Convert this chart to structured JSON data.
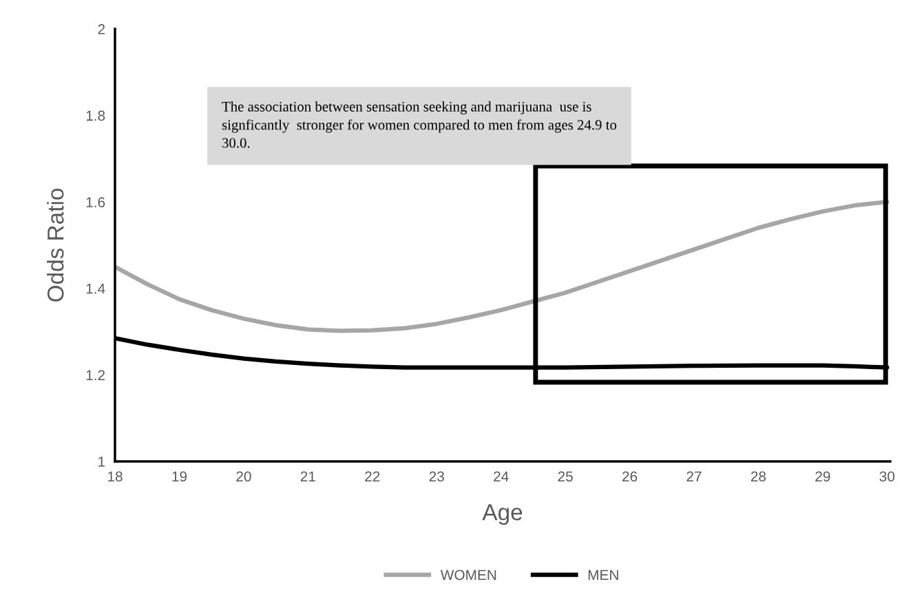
{
  "chart_data": {
    "type": "line",
    "xlabel": "Age",
    "ylabel": "Odds Ratio",
    "annotations": [
      "The association between sensation seeking and marijuana  use is signficantly  stronger for women compared to men from ages 24.9 to 30.0."
    ],
    "xlim": [
      18,
      30.05
    ],
    "xticks": [
      18,
      19,
      20,
      21,
      22,
      23,
      24,
      25,
      26,
      27,
      28,
      29,
      30
    ],
    "ylim": [
      1,
      2
    ],
    "yticks": [
      1,
      1.2,
      1.4,
      1.6,
      1.8,
      2
    ],
    "grid": false,
    "legend": "bottom",
    "marker": "none",
    "line_style": "solid",
    "series": [
      {
        "name": "WOMEN",
        "color": "#a6a6a6",
        "x": [
          18,
          18.5,
          19,
          19.5,
          20,
          20.5,
          21,
          21.5,
          22,
          22.5,
          23,
          23.5,
          24,
          24.5,
          25,
          25.5,
          26,
          26.5,
          27,
          27.5,
          28,
          28.5,
          29,
          29.5,
          30
        ],
        "values": [
          1.45,
          1.41,
          1.375,
          1.35,
          1.33,
          1.315,
          1.305,
          1.302,
          1.303,
          1.308,
          1.318,
          1.333,
          1.35,
          1.37,
          1.39,
          1.415,
          1.44,
          1.465,
          1.49,
          1.515,
          1.54,
          1.56,
          1.578,
          1.592,
          1.6
        ]
      },
      {
        "name": "MEN",
        "color": "#000000",
        "x": [
          18,
          18.5,
          19,
          19.5,
          20,
          20.5,
          21,
          21.5,
          22,
          22.5,
          23,
          24,
          25,
          26,
          27,
          28,
          29,
          29.5,
          30
        ],
        "values": [
          1.285,
          1.27,
          1.258,
          1.247,
          1.238,
          1.231,
          1.226,
          1.222,
          1.219,
          1.217,
          1.217,
          1.217,
          1.217,
          1.219,
          1.221,
          1.222,
          1.222,
          1.22,
          1.217
        ]
      }
    ]
  }
}
